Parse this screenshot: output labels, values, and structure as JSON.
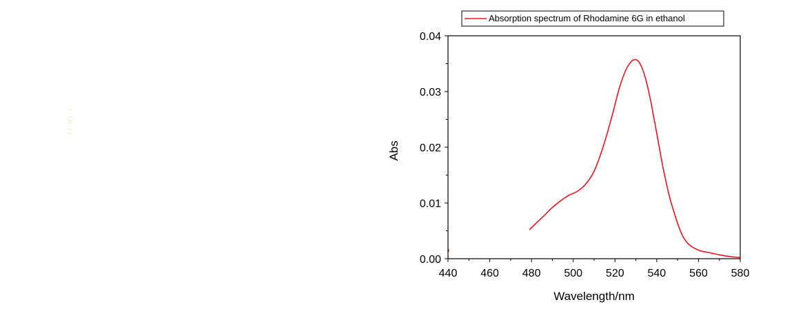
{
  "chart_data": {
    "type": "line",
    "title": "",
    "xlabel": "Wavelength/nm",
    "ylabel": "Abs",
    "xlim": [
      440,
      580
    ],
    "ylim": [
      0.0,
      0.04
    ],
    "xticks": [
      440,
      460,
      480,
      500,
      520,
      540,
      560,
      580
    ],
    "xtick_labels": [
      "440",
      "460",
      "480",
      "500",
      "520",
      "540",
      "560",
      "580"
    ],
    "yticks": [
      0.0,
      0.01,
      0.02,
      0.03,
      0.04
    ],
    "ytick_labels": [
      "0.00",
      "0.01",
      "0.02",
      "0.03",
      "0.04"
    ],
    "grid": false,
    "legend_position": "top",
    "series": [
      {
        "name": "Absorption spectrum of Rhodamine 6G in ethanol",
        "color": "#e8141c",
        "x": [
          479,
          482,
          486,
          490,
          494,
          498,
          502,
          506,
          510,
          514,
          518,
          522,
          525,
          527,
          529,
          531,
          533,
          535,
          537,
          540,
          543,
          546,
          549,
          552,
          555,
          558,
          561,
          565,
          570,
          575,
          580
        ],
        "y": [
          0.0052,
          0.0063,
          0.0077,
          0.0092,
          0.0104,
          0.0114,
          0.0121,
          0.0134,
          0.0157,
          0.0197,
          0.0248,
          0.0305,
          0.0337,
          0.035,
          0.0357,
          0.0355,
          0.0342,
          0.0318,
          0.0285,
          0.0225,
          0.0164,
          0.0113,
          0.0075,
          0.0044,
          0.0027,
          0.0019,
          0.0014,
          0.0011,
          0.0007,
          0.0004,
          0.0002
        ]
      }
    ]
  }
}
